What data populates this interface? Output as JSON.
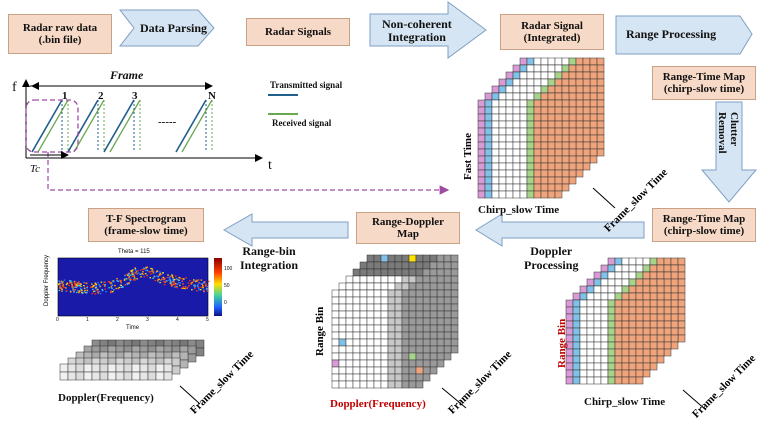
{
  "boxes": {
    "raw": "Radar raw data\n(.bin file)",
    "signals": "Radar Signals",
    "integrated": "Radar Signal\n(Integrated)",
    "rtm1": "Range-Time Map\n(chirp-slow time)",
    "rtm2": "Range-Time Map\n(chirp-slow time)",
    "rdm": "Range-Doppler\nMap",
    "tf": "T-F Spectrogram\n(frame-slow time)"
  },
  "arrows": {
    "parsing": "Data Parsing",
    "noncoherent": "Non-coherent\nIntegration",
    "range": "Range Processing",
    "clutter": "Clutter\nRemoval",
    "doppler": "Doppler\nProcessing",
    "rangebin": "Range-bin\nIntegration"
  },
  "signal_plot": {
    "frame": "Frame",
    "f_axis": "f",
    "t_axis": "t",
    "tc": "Tc",
    "chirps": [
      "1",
      "2",
      "3",
      "N"
    ],
    "ellipsis": "-----",
    "legend_tx": "Transmitted signal",
    "legend_rx": "Received signal",
    "tx_color": "#1f5f8b",
    "rx_color": "#6aa84f"
  },
  "grid_labels": {
    "fast_time": "Fast Time",
    "chirp_slow": "Chirp_slow Time",
    "frame_slow_1": "Frame_slow Time",
    "range_bin_1": "Range Bin",
    "chirp_slow_2": "Chirp_slow Time",
    "frame_slow_2": "Frame_slow Time",
    "range_bin_2": "Range Bin",
    "doppler_freq_2": "Doppler(Frequency)",
    "frame_slow_3": "Frame_slow Time",
    "doppler_freq_1": "Doppler(Frequency)",
    "frame_slow_4": "Frame_slow Time"
  },
  "spectrogram": {
    "title": "Theta = 115",
    "ylabel": "Doppler Frequency",
    "xlabel": "Time",
    "xticks": [
      "0",
      "1",
      "2",
      "3",
      "4",
      "5"
    ],
    "cbar_ticks": [
      "100",
      "50",
      "0"
    ]
  },
  "colors": {
    "box_fill": "#f6d9c6",
    "arrow_fill": "#d6e5f3",
    "arrow_edge": "#7f9fc4",
    "cell_pink": "#d99bd6",
    "cell_blue": "#7fc1e8",
    "cell_green": "#a8d48a",
    "cell_orange": "#f0a47c",
    "cell_yellow": "#ffe200"
  }
}
